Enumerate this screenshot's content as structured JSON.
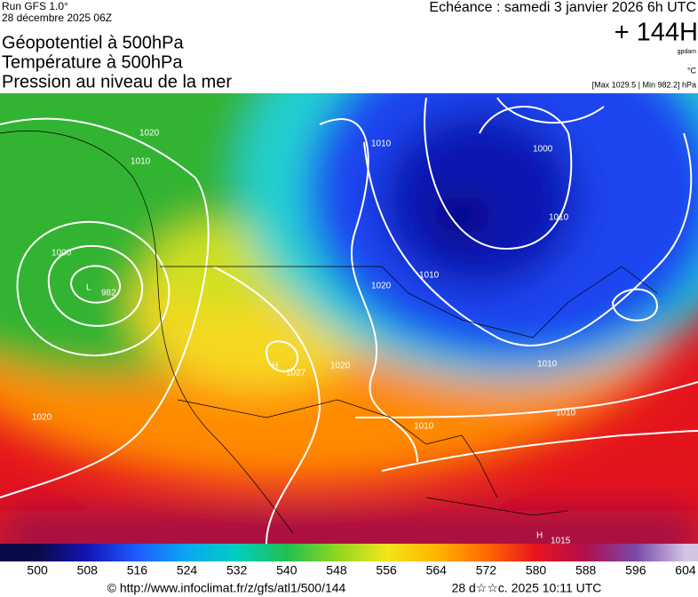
{
  "header": {
    "run": "Run GFS 1.0°",
    "run_date": "28 décembre 2025 06Z",
    "line1": "Géopotentiel à 500hPa",
    "line2": "Température à 500hPa",
    "line3": "Pression au niveau de la mer",
    "valid": "Echéance : samedi 3 janvier 2026 6h UTC",
    "lead": "+ 144H",
    "unit_geo": "gpdam",
    "unit_temp": "°C",
    "pressure_range": "[Max 1029.5 | Min 982.2] hPa"
  },
  "map": {
    "labels": [
      "1020",
      "1010",
      "1000",
      "L",
      "982",
      "1010",
      "1000",
      "1010",
      "1020",
      "1010",
      "H",
      "1027",
      "1020",
      "1010",
      "1010",
      "1010",
      "1020",
      "H",
      "1015"
    ]
  },
  "colorbar": {
    "lim": [
      494,
      606
    ],
    "ticks": [
      500,
      508,
      516,
      524,
      532,
      540,
      548,
      556,
      564,
      572,
      580,
      588,
      596,
      604
    ],
    "colors": [
      "#0a0a48",
      "#1414b4",
      "#1f5cff",
      "#0aa8f0",
      "#00cfc0",
      "#1fc050",
      "#8fd622",
      "#f3e51c",
      "#ffb400",
      "#ff6a00",
      "#e8141e",
      "#b0104e",
      "#7848a8",
      "#d4c4e4"
    ]
  },
  "footer": {
    "source": "© http://www.infoclimat.fr/z/gfs/atl1/500/144",
    "generated": "28 d☆☆c. 2025 10:11 UTC"
  }
}
